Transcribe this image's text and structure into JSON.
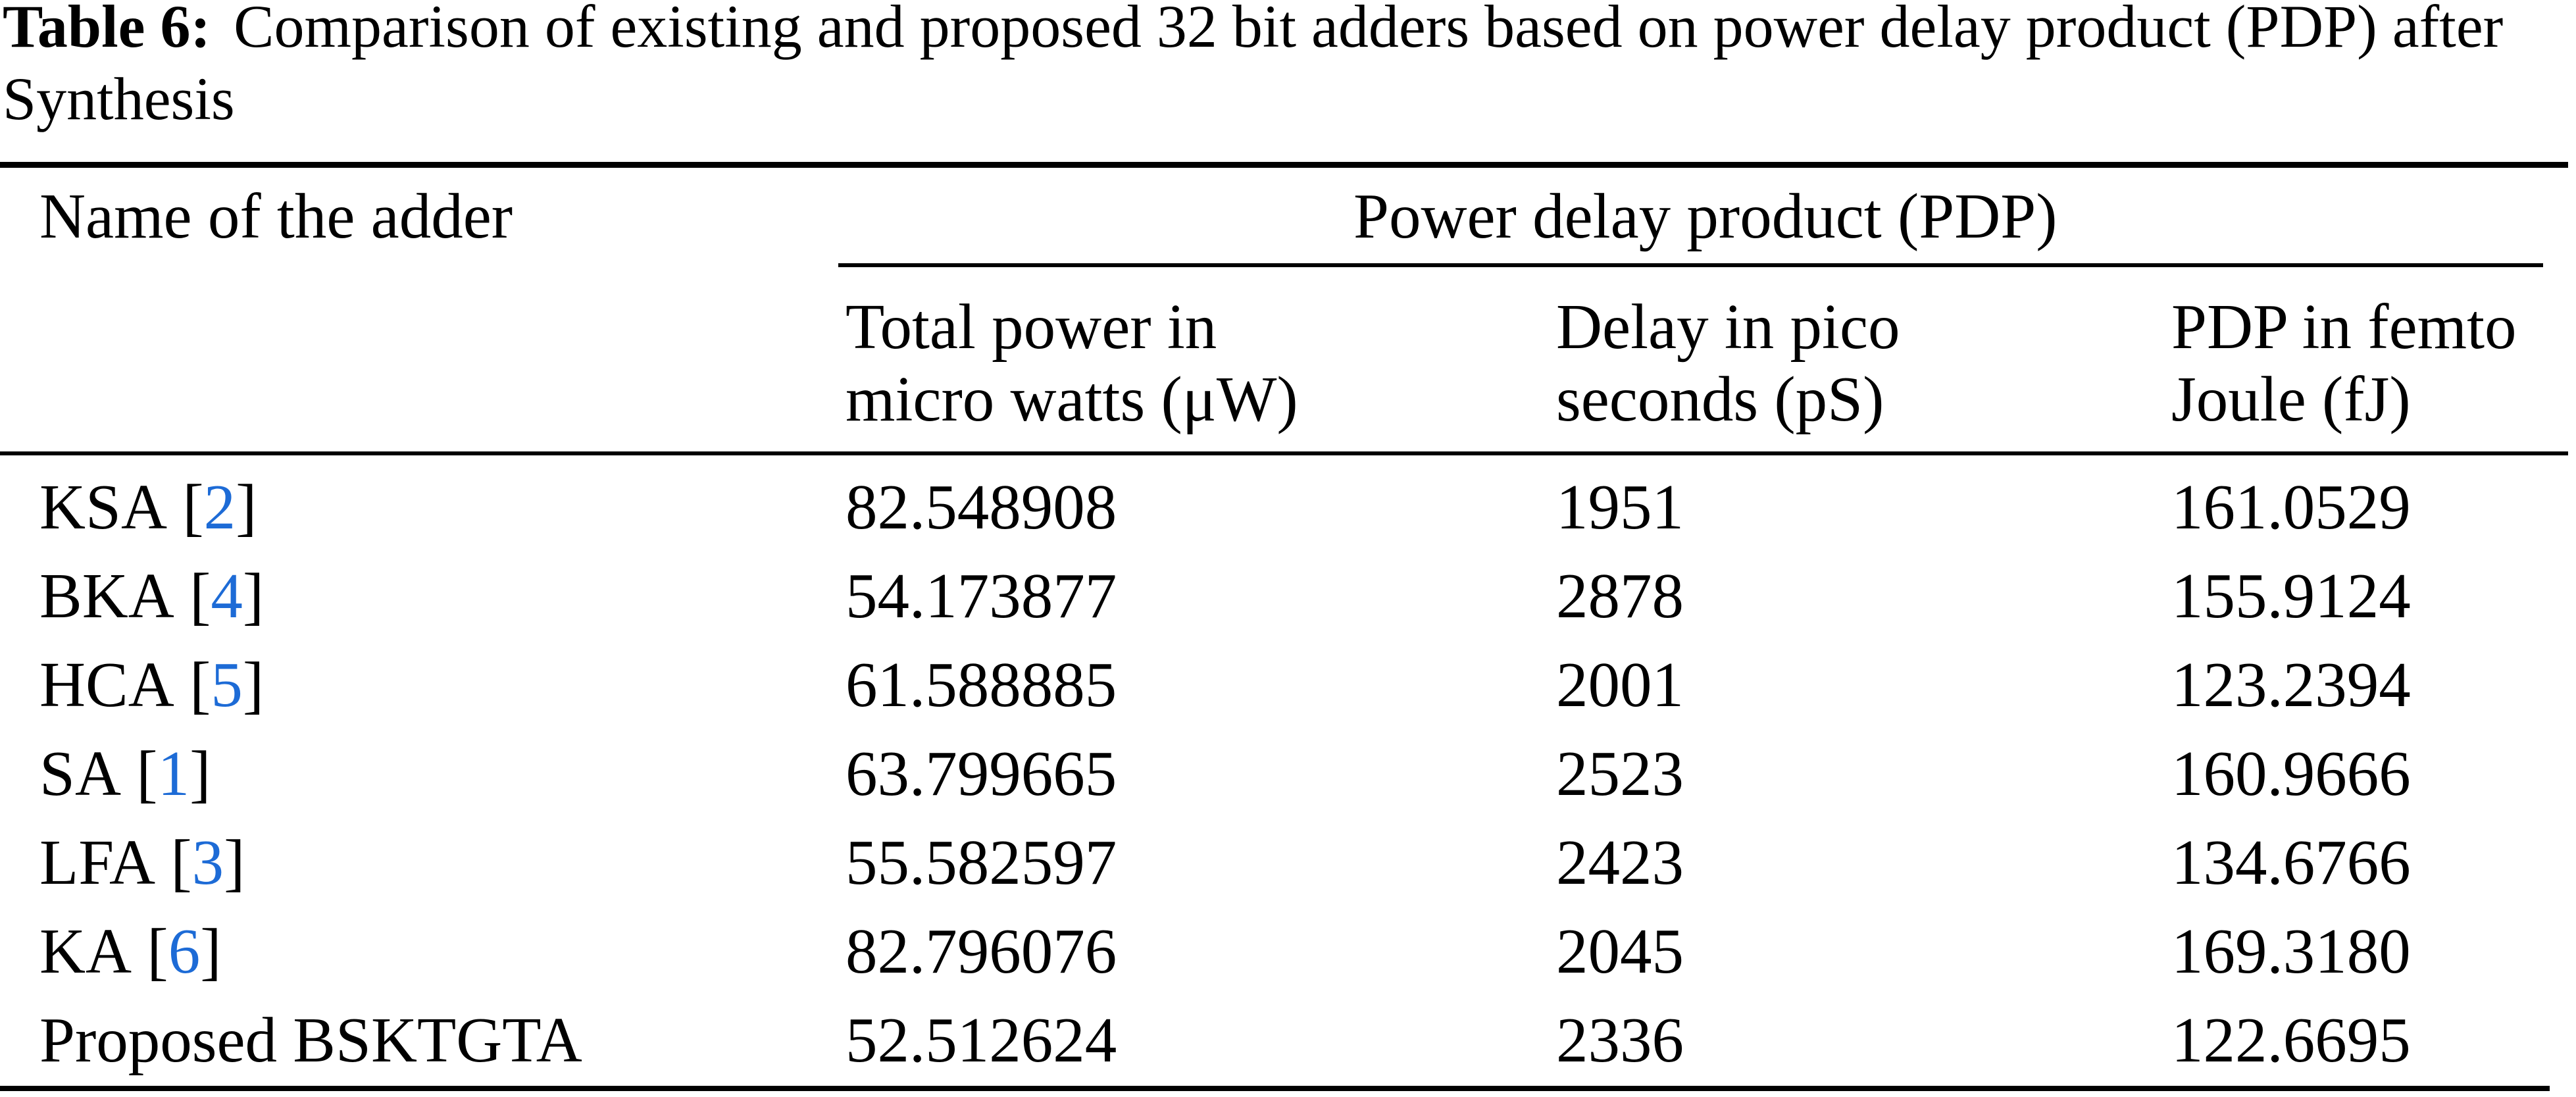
{
  "colors": {
    "background": "#ffffff",
    "text": "#000000",
    "citation_link": "#1d6bd6",
    "rule": "#000000"
  },
  "caption": {
    "label": "Table 6:",
    "line1": "Comparison of existing and proposed 32 bit adders based on power delay product (PDP) after",
    "line2": "Synthesis"
  },
  "table": {
    "name_header": "Name of the adder",
    "group_header": "Power delay product (PDP)",
    "sub_headers": {
      "power": {
        "line1": "Total power in",
        "line2": "micro watts (μW)"
      },
      "delay": {
        "line1": "Delay in pico",
        "line2": "seconds (pS)"
      },
      "pdp": {
        "line1": "PDP in femto",
        "line2": "Joule (fJ)"
      }
    },
    "ref_open": "[",
    "ref_close": "]",
    "rows": [
      {
        "name": "KSA",
        "ref": "2",
        "power": "82.548908",
        "delay": "1951",
        "pdp": "161.0529"
      },
      {
        "name": "BKA",
        "ref": "4",
        "power": "54.173877",
        "delay": "2878",
        "pdp": "155.9124"
      },
      {
        "name": "HCA",
        "ref": "5",
        "power": "61.588885",
        "delay": "2001",
        "pdp": "123.2394"
      },
      {
        "name": "SA",
        "ref": "1",
        "power": "63.799665",
        "delay": "2523",
        "pdp": "160.9666"
      },
      {
        "name": "LFA",
        "ref": "3",
        "power": "55.582597",
        "delay": "2423",
        "pdp": "134.6766"
      },
      {
        "name": "KA",
        "ref": "6",
        "power": "82.796076",
        "delay": "2045",
        "pdp": "169.3180"
      },
      {
        "name": "Proposed BSKTGTA",
        "ref": null,
        "power": "52.512624",
        "delay": "2336",
        "pdp": "122.6695"
      }
    ]
  }
}
